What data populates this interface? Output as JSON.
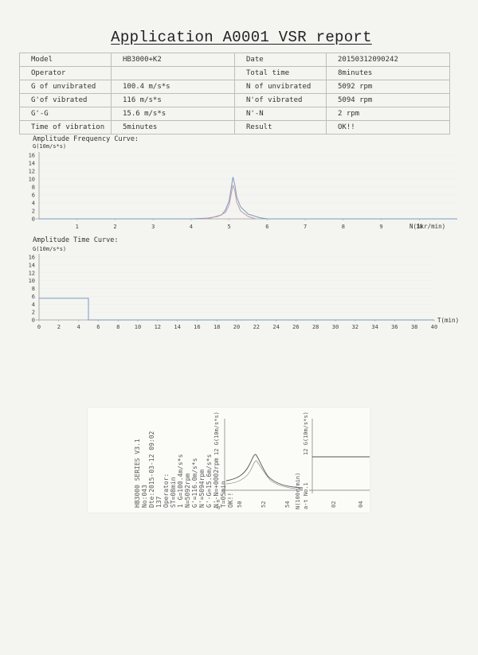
{
  "report": {
    "title": "Application A0001 VSR report",
    "rows": [
      {
        "label1": "Model",
        "value1": "HB3000+K2",
        "label2": "Date",
        "value2": "20150312090242"
      },
      {
        "label1": "Operator",
        "value1": "",
        "label2": "Total time",
        "value2": "8minutes"
      },
      {
        "label1": "G of unvibrated",
        "value1": "100.4 m/s*s",
        "label2": "N of unvibrated",
        "value2": "5092 rpm"
      },
      {
        "label1": "G'of vibrated",
        "value1": "116 m/s*s",
        "label2": "N'of vibrated",
        "value2": "5094 rpm"
      },
      {
        "label1": "G'-G",
        "value1": "15.6 m/s*s",
        "label2": "N'-N",
        "value2": "2 rpm"
      },
      {
        "label1": "Time of vibration",
        "value1": "5minutes",
        "label2": "Result",
        "value2": "OK!!"
      }
    ]
  },
  "freq_chart": {
    "title": "Amplitude Frequency Curve:",
    "ylabel": "G(10m/s*s)",
    "xlabel": "N(1kr/min)"
  },
  "time_chart": {
    "title": "Amplitude Time Curve:",
    "ylabel": "G(10m/s*s)",
    "xlabel": "T(min)"
  },
  "chart_data": [
    {
      "type": "line",
      "title": "Amplitude Frequency Curve:",
      "xlabel": "N(1kr/min)",
      "ylabel": "G(10m/s*s)",
      "xlim": [
        0,
        11
      ],
      "ylim": [
        0,
        16
      ],
      "xticks": [
        1,
        2,
        3,
        4,
        5,
        6,
        7,
        8,
        9,
        10
      ],
      "yticks": [
        0,
        2,
        4,
        6,
        8,
        10,
        12,
        14,
        16
      ],
      "series": [
        {
          "color": "#7a9bc0",
          "x": [
            0,
            1,
            2,
            3,
            4,
            4.5,
            4.8,
            4.9,
            5.0,
            5.05,
            5.1,
            5.15,
            5.2,
            5.3,
            5.5,
            5.8,
            6,
            7,
            11
          ],
          "y": [
            0,
            0,
            0,
            0,
            0,
            0.2,
            1.0,
            2.2,
            4.5,
            7.5,
            10.5,
            8.5,
            5.5,
            3.0,
            1.2,
            0.3,
            0,
            0,
            0
          ]
        },
        {
          "color": "#c69aa4",
          "x": [
            4.3,
            4.7,
            4.9,
            5.0,
            5.05,
            5.1,
            5.15,
            5.2,
            5.3,
            5.5,
            5.7
          ],
          "y": [
            0,
            0.6,
            1.6,
            3.5,
            6.0,
            8.5,
            7.0,
            4.2,
            2.0,
            0.6,
            0
          ]
        }
      ]
    },
    {
      "type": "line",
      "title": "Amplitude Time Curve:",
      "xlabel": "T(min)",
      "ylabel": "G(10m/s*s)",
      "xlim": [
        0,
        40
      ],
      "ylim": [
        0,
        16
      ],
      "xticks": [
        0,
        2,
        4,
        6,
        8,
        10,
        12,
        14,
        16,
        18,
        20,
        22,
        24,
        26,
        28,
        30,
        32,
        34,
        36,
        38,
        40
      ],
      "yticks": [
        0,
        2,
        4,
        6,
        8,
        10,
        12,
        14,
        16
      ],
      "series": [
        {
          "color": "#7a9bc0",
          "x": [
            0,
            5,
            5,
            40
          ],
          "y": [
            5.5,
            5.5,
            0,
            0
          ]
        }
      ]
    }
  ],
  "receipt": {
    "lines": [
      "HB3000 SERIES V3.1",
      "No:043",
      "Dte:2015-03-12 09:02",
      "137",
      "Operator:",
      "ST=08min",
      "1 G=100.4m/s*s",
      "N=5092rpm",
      "G'=116.0m/s*s",
      "N'=5094rpm",
      "G'-G=15.6m/s*s",
      "N'-N=+0002rpm",
      "T=05min",
      "OK!!"
    ],
    "graph1_label_g": "12 G(10m/s*s)",
    "graph1_label_n": "N(100r/min)",
    "graph1_label_an": "a-n",
    "graph1_ticks": [
      "50",
      "52",
      "54"
    ],
    "graph2_label_g": "12 G(10m/s*s)",
    "graph2_label_at": "a-t No.1",
    "graph2_ticks": [
      "02",
      "04"
    ]
  }
}
